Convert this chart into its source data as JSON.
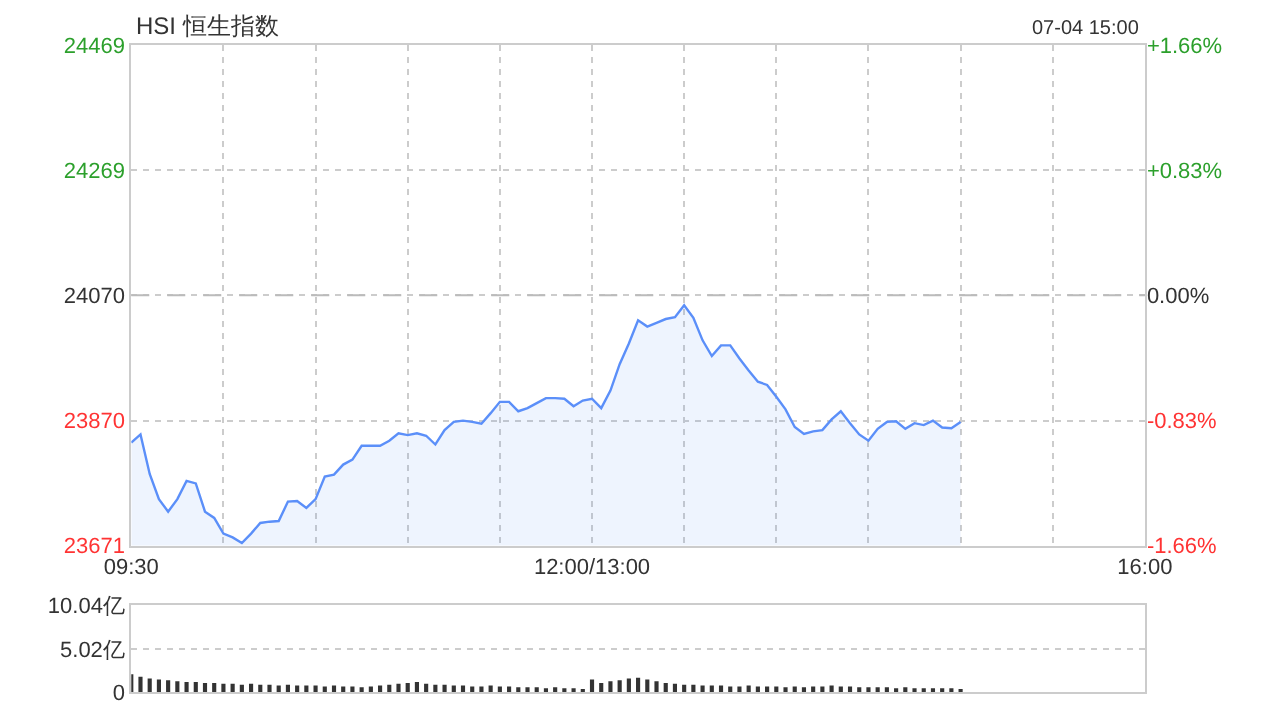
{
  "chart_data": [
    {
      "type": "area",
      "title": "HSI 恒生指数",
      "annotations": [
        "07-04 15:00"
      ],
      "categories": [
        "09:30",
        null,
        null,
        null,
        null,
        null,
        null,
        null,
        null,
        null,
        null,
        null,
        null,
        null,
        null,
        null,
        null,
        null,
        null,
        null,
        null,
        null,
        null,
        null,
        null,
        null,
        null,
        null,
        null,
        null,
        null,
        null,
        null,
        null,
        null,
        null,
        null,
        null,
        null,
        null,
        null,
        null,
        null,
        null,
        null,
        null,
        null,
        null,
        null,
        null,
        "12:00/13:00",
        null,
        null,
        null,
        null,
        null,
        null,
        null,
        null,
        null,
        null,
        null,
        null,
        null,
        null,
        null,
        null,
        null,
        null,
        null,
        null,
        null,
        null,
        null,
        null,
        null,
        null,
        null,
        null,
        null,
        null,
        null,
        null,
        null,
        null,
        null,
        null,
        null,
        null,
        null,
        null,
        null,
        null,
        null,
        null,
        null,
        null,
        null,
        null,
        null,
        null,
        null,
        null,
        null,
        null,
        null,
        null,
        null,
        null,
        null,
        "16:00"
      ],
      "series": [
        {
          "color": "#5b8ff9",
          "values": [
            23835,
            23848,
            23785,
            23745,
            23725,
            23745,
            23774,
            23770,
            23725,
            23715,
            23690,
            23684,
            23675,
            23690,
            23707,
            23709,
            23710,
            23741,
            23742,
            23731,
            23745,
            23781,
            23784,
            23800,
            23808,
            23830,
            23830,
            23830,
            23838,
            23850,
            23847,
            23850,
            23846,
            23832,
            23855,
            23868,
            23870,
            23868,
            23865,
            23882,
            23900,
            23900,
            23885,
            23890,
            23898,
            23906,
            23906,
            23905,
            23893,
            23902,
            23905,
            23890,
            23918,
            23960,
            23993,
            24030,
            24020,
            24026,
            24032,
            24035,
            24054,
            24034,
            23998,
            23973,
            23990,
            23990,
            23969,
            23950,
            23932,
            23927,
            23908,
            23888,
            23860,
            23849,
            23853,
            23855,
            23872,
            23885,
            23866,
            23848,
            23838,
            23857,
            23868,
            23869,
            23857,
            23866,
            23863,
            23870,
            23859,
            23858,
            23868,
            null,
            null,
            null,
            null,
            null,
            null,
            null,
            null,
            null,
            null,
            null,
            null,
            null,
            null,
            null,
            null,
            null,
            null,
            null,
            null
          ]
        }
      ],
      "ylim": [
        23671,
        24469
      ],
      "yticks": [
        23671,
        23870,
        24070,
        24269,
        24469
      ],
      "y2lim": [
        -1.66,
        1.66
      ],
      "y2ticks": [
        {
          "value": -1.66,
          "label": "-1.66%"
        },
        {
          "value": -0.83,
          "label": "-0.83%"
        },
        {
          "value": 0,
          "label": "0.00%"
        },
        {
          "value": 0.83,
          "label": "+0.83%"
        },
        {
          "value": 1.66,
          "label": "+1.66%"
        }
      ],
      "ref_lines": [
        {
          "axis": "y",
          "value": 24070,
          "color": "#bbbbbb",
          "line_style": "dashed"
        }
      ],
      "grid": true
    },
    {
      "type": "bar",
      "categories": [
        null,
        null,
        null,
        null,
        null,
        null,
        null,
        null,
        null,
        null,
        null,
        null,
        null,
        null,
        null,
        null,
        null,
        null,
        null,
        null,
        null,
        null,
        null,
        null,
        null,
        null,
        null,
        null,
        null,
        null,
        null,
        null,
        null,
        null,
        null,
        null,
        null,
        null,
        null,
        null,
        null,
        null,
        null,
        null,
        null,
        null,
        null,
        null,
        null,
        null,
        null,
        null,
        null,
        null,
        null,
        null,
        null,
        null,
        null,
        null,
        null,
        null,
        null,
        null,
        null,
        null,
        null,
        null,
        null,
        null,
        null,
        null,
        null,
        null,
        null,
        null,
        null,
        null,
        null,
        null,
        null,
        null,
        null,
        null,
        null,
        null,
        null,
        null,
        null,
        null,
        null,
        null,
        null,
        null,
        null,
        null,
        null,
        null,
        null,
        null,
        null,
        null,
        null,
        null,
        null,
        null,
        null,
        null,
        null,
        null,
        null
      ],
      "series": [
        {
          "color": "#333333",
          "values": [
            2.1,
            1.8,
            1.6,
            1.5,
            1.4,
            1.3,
            1.2,
            1.2,
            1.1,
            1.1,
            1.0,
            1.0,
            0.9,
            1.0,
            0.9,
            0.9,
            0.8,
            0.9,
            0.8,
            0.8,
            0.8,
            0.7,
            0.8,
            0.7,
            0.7,
            0.6,
            0.7,
            0.8,
            0.9,
            1.0,
            1.1,
            1.2,
            1.0,
            0.9,
            0.9,
            0.8,
            0.8,
            0.7,
            0.7,
            0.8,
            0.7,
            0.7,
            0.6,
            0.6,
            0.6,
            0.5,
            0.6,
            0.5,
            0.5,
            0.4,
            1.5,
            1.1,
            1.3,
            1.4,
            1.6,
            1.7,
            1.5,
            1.3,
            1.1,
            1.0,
            0.9,
            0.9,
            0.8,
            0.8,
            0.8,
            0.7,
            0.7,
            0.8,
            0.7,
            0.7,
            0.7,
            0.6,
            0.7,
            0.6,
            0.7,
            0.7,
            0.8,
            0.7,
            0.7,
            0.6,
            0.6,
            0.6,
            0.6,
            0.5,
            0.6,
            0.5,
            0.5,
            0.5,
            0.5,
            0.5,
            0.4,
            null,
            null,
            null,
            null,
            null,
            null,
            null,
            null,
            null,
            null,
            null,
            null,
            null,
            null,
            null,
            null,
            null,
            null,
            null,
            null
          ]
        }
      ],
      "ylim": [
        0,
        10.04
      ],
      "yticks": [
        0,
        {
          "value": 5.02,
          "label": "5.02亿"
        },
        {
          "value": 10.04,
          "label": "10.04亿"
        }
      ],
      "grid": "y",
      "tick_labels": "y"
    }
  ]
}
